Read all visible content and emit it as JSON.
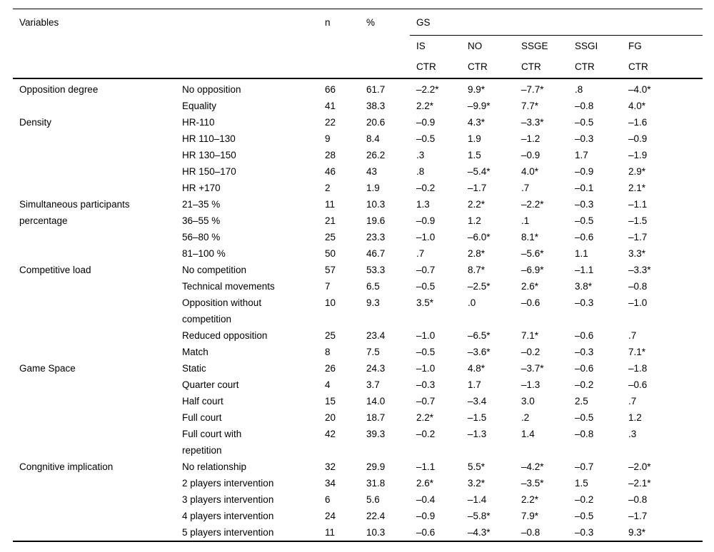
{
  "colors": {
    "background": "#ffffff",
    "text": "#000000",
    "rule": "#000000"
  },
  "table": {
    "header": {
      "variables_label": "Variables",
      "n_label": "n",
      "percent_label": "%",
      "gs_label": "GS",
      "subcolumns": [
        "IS",
        "NO",
        "SSGE",
        "SSGI",
        "FG"
      ],
      "ctr_label": "CTR"
    },
    "groups": [
      {
        "label": "Opposition degree",
        "rows": [
          {
            "category": "No opposition",
            "n": "66",
            "pct": "61.7",
            "values": [
              "–2.2*",
              "9.9*",
              "–7.7*",
              ".8",
              "–4.0*"
            ]
          },
          {
            "category": "Equality",
            "n": "41",
            "pct": "38.3",
            "values": [
              "2.2*",
              "–9.9*",
              "7.7*",
              "–0.8",
              "4.0*"
            ]
          }
        ]
      },
      {
        "label": "Density",
        "rows": [
          {
            "category": "HR-110",
            "n": "22",
            "pct": "20.6",
            "values": [
              "–0.9",
              "4.3*",
              "–3.3*",
              "–0.5",
              "–1.6"
            ]
          },
          {
            "category": "HR 110–130",
            "n": "9",
            "pct": "8.4",
            "values": [
              "–0.5",
              "1.9",
              "–1.2",
              "–0.3",
              "–0.9"
            ]
          },
          {
            "category": "HR 130–150",
            "n": "28",
            "pct": "26.2",
            "values": [
              ".3",
              "1.5",
              "–0.9",
              "1.7",
              "–1.9"
            ]
          },
          {
            "category": "HR 150–170",
            "n": "46",
            "pct": "43",
            "values": [
              ".8",
              "–5.4*",
              "4.0*",
              "–0.9",
              "2.9*"
            ]
          },
          {
            "category": "HR +170",
            "n": "2",
            "pct": "1.9",
            "values": [
              "–0.2",
              "–1.7",
              ".7",
              "–0.1",
              "2.1*"
            ]
          }
        ]
      },
      {
        "label": "Simultaneous participants\npercentage",
        "rows": [
          {
            "category": "21–35 %",
            "n": "11",
            "pct": "10.3",
            "values": [
              "1.3",
              "2.2*",
              "–2.2*",
              "–0.3",
              "–1.1"
            ]
          },
          {
            "category": "36–55 %",
            "n": "21",
            "pct": "19.6",
            "values": [
              "–0.9",
              "1.2",
              ".1",
              "–0.5",
              "–1.5"
            ]
          },
          {
            "category": "56–80 %",
            "n": "25",
            "pct": "23.3",
            "values": [
              "–1.0",
              "–6.0*",
              "8.1*",
              "–0.6",
              "–1.7"
            ]
          },
          {
            "category": "81–100 %",
            "n": "50",
            "pct": "46.7",
            "values": [
              ".7",
              "2.8*",
              "–5.6*",
              "1.1",
              "3.3*"
            ]
          }
        ]
      },
      {
        "label": "Competitive load",
        "rows": [
          {
            "category": "No competition",
            "n": "57",
            "pct": "53.3",
            "values": [
              "–0.7",
              "8.7*",
              "–6.9*",
              "–1.1",
              "–3.3*"
            ]
          },
          {
            "category": "Technical movements",
            "n": "7",
            "pct": "6.5",
            "values": [
              "–0.5",
              "–2.5*",
              "2.6*",
              "3.8*",
              "–0.8"
            ]
          },
          {
            "category": "Opposition without\ncompetition",
            "n": "10",
            "pct": "9.3",
            "values": [
              "3.5*",
              ".0",
              "–0.6",
              "–0.3",
              "–1.0"
            ]
          },
          {
            "category": "Reduced opposition",
            "n": "25",
            "pct": "23.4",
            "values": [
              "–1.0",
              "–6.5*",
              "7.1*",
              "–0.6",
              ".7"
            ]
          },
          {
            "category": "Match",
            "n": "8",
            "pct": "7.5",
            "values": [
              "–0.5",
              "–3.6*",
              "–0.2",
              "–0.3",
              "7.1*"
            ]
          }
        ]
      },
      {
        "label": "Game Space",
        "rows": [
          {
            "category": "Static",
            "n": "26",
            "pct": "24.3",
            "values": [
              "–1.0",
              "4.8*",
              "–3.7*",
              "–0.6",
              "–1.8"
            ]
          },
          {
            "category": "Quarter court",
            "n": "4",
            "pct": "3.7",
            "values": [
              "–0.3",
              "1.7",
              "–1.3",
              "–0.2",
              "–0.6"
            ]
          },
          {
            "category": "Half court",
            "n": "15",
            "pct": "14.0",
            "values": [
              "–0.7",
              "–3.4",
              "3.0",
              "2.5",
              ".7"
            ]
          },
          {
            "category": "Full court",
            "n": "20",
            "pct": "18.7",
            "values": [
              "2.2*",
              "–1.5",
              ".2",
              "–0.5",
              "1.2"
            ]
          },
          {
            "category": "Full court with\nrepetition",
            "n": "42",
            "pct": "39.3",
            "values": [
              "–0.2",
              "–1.3",
              "1.4",
              "–0.8",
              ".3"
            ]
          }
        ]
      },
      {
        "label": "Congnitive implication",
        "rows": [
          {
            "category": "No relationship",
            "n": "32",
            "pct": "29.9",
            "values": [
              "–1.1",
              "5.5*",
              "–4.2*",
              "–0.7",
              "–2.0*"
            ]
          },
          {
            "category": "2 players intervention",
            "n": "34",
            "pct": "31.8",
            "values": [
              "2.6*",
              "3.2*",
              "–3.5*",
              "1.5",
              "–2.1*"
            ]
          },
          {
            "category": "3 players intervention",
            "n": "6",
            "pct": "5.6",
            "values": [
              "–0.4",
              "–1.4",
              "2.2*",
              "–0.2",
              "–0.8"
            ]
          },
          {
            "category": "4 players intervention",
            "n": "24",
            "pct": "22.4",
            "values": [
              "–0.9",
              "–5.8*",
              "7.9*",
              "–0.5",
              "–1.7"
            ]
          },
          {
            "category": "5 players intervention",
            "n": "11",
            "pct": "10.3",
            "values": [
              "–0.6",
              "–4.3*",
              "–0.8",
              "–0.3",
              "9.3*"
            ]
          }
        ]
      }
    ]
  }
}
